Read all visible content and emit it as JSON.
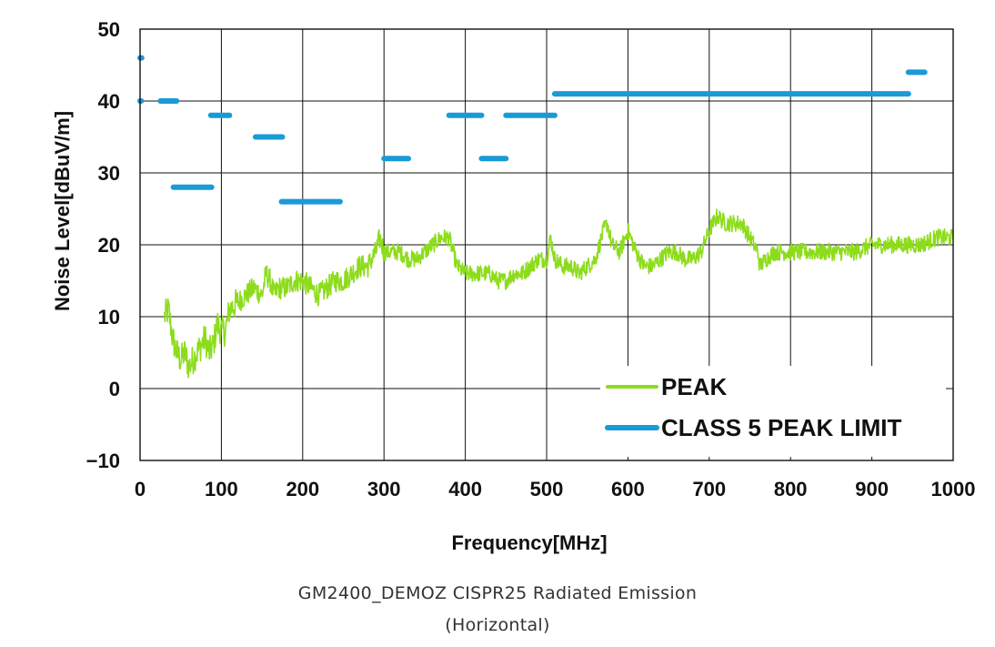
{
  "chart_data": {
    "type": "line",
    "xlabel": "Frequency[MHz]",
    "ylabel": "Noise Level[dBuV/m]",
    "xlim": [
      0,
      1000
    ],
    "ylim": [
      -10,
      50
    ],
    "xticks": [
      0,
      100,
      200,
      300,
      400,
      500,
      600,
      700,
      800,
      900,
      1000
    ],
    "yticks": [
      -10,
      0,
      10,
      20,
      30,
      40,
      50
    ],
    "xtick_labels": [
      "0",
      "100",
      "200",
      "300",
      "400",
      "500",
      "600",
      "700",
      "800",
      "900",
      "1000"
    ],
    "ytick_labels": [
      "−10",
      "0",
      "10",
      "20",
      "30",
      "40",
      "50"
    ],
    "grid": true,
    "legend_position": "bottom-right",
    "series": [
      {
        "name": "PEAK",
        "color": "#8ddc1c",
        "style": "noisy-line",
        "x": [
          30,
          35,
          40,
          45,
          50,
          55,
          60,
          65,
          70,
          75,
          80,
          85,
          90,
          95,
          100,
          105,
          110,
          120,
          130,
          140,
          150,
          155,
          160,
          165,
          170,
          180,
          190,
          200,
          210,
          220,
          230,
          240,
          250,
          260,
          270,
          280,
          290,
          295,
          300,
          310,
          320,
          330,
          340,
          350,
          360,
          370,
          380,
          390,
          400,
          410,
          420,
          430,
          440,
          450,
          460,
          470,
          480,
          490,
          500,
          505,
          510,
          520,
          530,
          540,
          550,
          560,
          570,
          575,
          580,
          590,
          600,
          610,
          620,
          630,
          640,
          650,
          660,
          670,
          680,
          690,
          700,
          710,
          720,
          730,
          740,
          750,
          760,
          762,
          770,
          780,
          790,
          800,
          820,
          840,
          860,
          880,
          900,
          920,
          940,
          960,
          980,
          1000
        ],
        "values": [
          10,
          11,
          7,
          5,
          4,
          5,
          3,
          4,
          5,
          6,
          7,
          5,
          6,
          9,
          8,
          8,
          11,
          12,
          13,
          14,
          13,
          16,
          15,
          13,
          14,
          14,
          15,
          15,
          14,
          13,
          14,
          15,
          15,
          16,
          17,
          17,
          19,
          21,
          19,
          19,
          19,
          18,
          18,
          19,
          20,
          21,
          21,
          17,
          16,
          16,
          16,
          16,
          15,
          15,
          16,
          16,
          17,
          18,
          18,
          21,
          18,
          17,
          17,
          16,
          17,
          18,
          22,
          23,
          20,
          19,
          22,
          19,
          17,
          17,
          18,
          19,
          19,
          18,
          18,
          19,
          22,
          24,
          23,
          23,
          23,
          21,
          19,
          17,
          18,
          19,
          19,
          19,
          19,
          19,
          19,
          19,
          20,
          20,
          20,
          20,
          21,
          21
        ]
      },
      {
        "name": "CLASS 5 PEAK LIMIT",
        "color": "#1a9ad6",
        "style": "segments",
        "segments": [
          {
            "x": [
              0,
              2
            ],
            "y": 46
          },
          {
            "x": 0,
            "y": 40
          },
          {
            "x": [
              25,
              45
            ],
            "y": 40
          },
          {
            "x": [
              41,
              88
            ],
            "y": 28
          },
          {
            "x": [
              87,
              110
            ],
            "y": 38
          },
          {
            "x": [
              142,
              175
            ],
            "y": 35
          },
          {
            "x": [
              174,
              246
            ],
            "y": 26
          },
          {
            "x": [
              300,
              330
            ],
            "y": 32
          },
          {
            "x": [
              380,
              420
            ],
            "y": 38
          },
          {
            "x": [
              420,
              450
            ],
            "y": 32
          },
          {
            "x": [
              450,
              510
            ],
            "y": 38
          },
          {
            "x": [
              510,
              945
            ],
            "y": 41
          },
          {
            "x": [
              945,
              965
            ],
            "y": 44
          }
        ]
      }
    ]
  },
  "caption": {
    "line1": "GM2400_DEMOZ CISPR25 Radiated Emission",
    "line2": "(Horizontal)"
  }
}
